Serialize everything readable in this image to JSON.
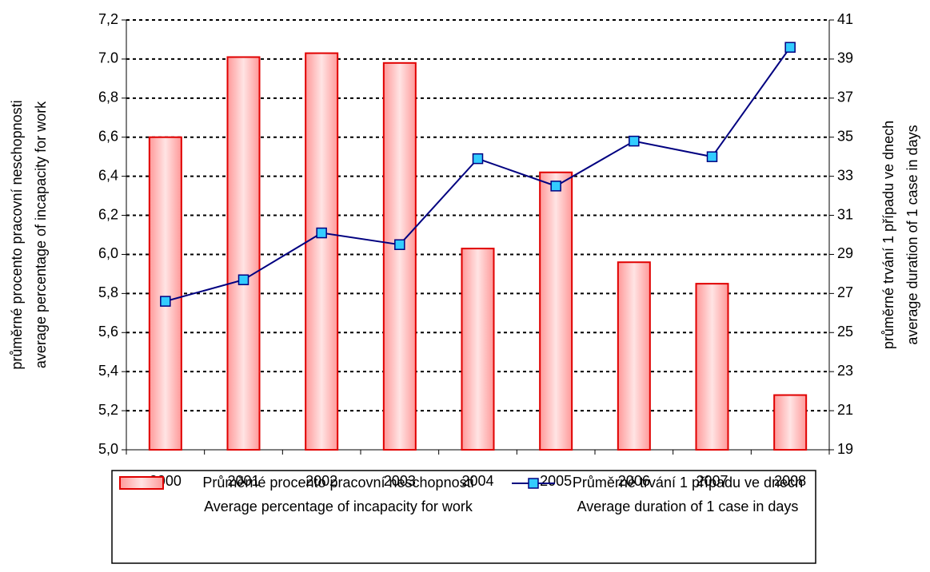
{
  "chart_data": {
    "type": "combo",
    "categories": [
      "2000",
      "2001",
      "2002",
      "2003",
      "2004",
      "2005",
      "2006",
      "2007",
      "2008"
    ],
    "series": [
      {
        "name": [
          "Průměrné procento pracovní neschopnosti",
          "Average percentage of incapacity for work"
        ],
        "type": "bar",
        "color": "#ff9999",
        "edge_color": "#e00000",
        "values": [
          6.6,
          7.01,
          7.03,
          6.98,
          6.03,
          6.42,
          5.96,
          5.85,
          5.28
        ]
      },
      {
        "name": [
          "Průměrné trvání 1 případu ve dnech",
          "Average duration of 1 case in days"
        ],
        "type": "line",
        "axis": "y2",
        "color": "#000080",
        "marker_color": "#33ccff",
        "values": [
          26.6,
          27.7,
          30.1,
          29.5,
          33.9,
          32.5,
          34.8,
          34.0,
          39.6
        ]
      }
    ],
    "ylabel": [
      "průměrné procento pracovní neschopnosti",
      "average percentage of incapacity for work"
    ],
    "y2label": [
      "průměrné trvání 1 případu ve dnech",
      "average duration of 1 case in days"
    ],
    "ylim": [
      5.0,
      7.2
    ],
    "yticks": [
      {
        "value": 5.0,
        "label": "5,0"
      },
      {
        "value": 5.2,
        "label": "5,2"
      },
      {
        "value": 5.4,
        "label": "5,4"
      },
      {
        "value": 5.6,
        "label": "5,6"
      },
      {
        "value": 5.8,
        "label": "5,8"
      },
      {
        "value": 6.0,
        "label": "6,0"
      },
      {
        "value": 6.2,
        "label": "6,2"
      },
      {
        "value": 6.4,
        "label": "6,4"
      },
      {
        "value": 6.6,
        "label": "6,6"
      },
      {
        "value": 6.8,
        "label": "6,8"
      },
      {
        "value": 7.0,
        "label": "7.0"
      },
      {
        "value": 7.2,
        "label": "7,2"
      }
    ],
    "y2lim": [
      19,
      41
    ],
    "y2ticks": [
      19,
      21,
      23,
      25,
      27,
      29,
      31,
      33,
      35,
      37,
      39,
      41
    ],
    "grid": true,
    "legend": "bottom"
  }
}
